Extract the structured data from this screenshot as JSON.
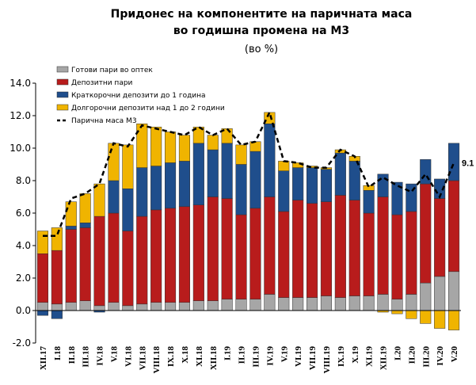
{
  "chart_data": {
    "type": "stacked_bar_line",
    "title": "Придонес на компонентите на паричната маса",
    "subtitle": "во годишна промена на М3",
    "unit_label": "(во %)",
    "categories": [
      "XII.17",
      "I.18",
      "II.18",
      "III.18",
      "IV.18",
      "V.18",
      "VI.18",
      "VII.18",
      "VIII.18",
      "IX.18",
      "X.18",
      "XI.18",
      "XII.18",
      "I.19",
      "II.19",
      "III.19",
      "IV.19",
      "V.19",
      "VI.19",
      "VII.19",
      "VIII.19",
      "IX.19",
      "X.19",
      "XI.19",
      "XII.19",
      "I.20",
      "II.20",
      "III.20",
      "IV.20",
      "V.20"
    ],
    "series": [
      {
        "name": "Готови пари во оптек",
        "color": "#a6a6a6",
        "kind": "bar",
        "values": [
          0.5,
          0.4,
          0.5,
          0.6,
          0.3,
          0.5,
          0.3,
          0.4,
          0.5,
          0.5,
          0.5,
          0.6,
          0.6,
          0.7,
          0.7,
          0.7,
          1.0,
          0.8,
          0.8,
          0.8,
          0.9,
          0.8,
          0.9,
          0.9,
          1.0,
          0.7,
          1.0,
          1.7,
          2.1,
          2.4
        ]
      },
      {
        "name": "Депозитни пари",
        "color": "#b81c1c",
        "kind": "bar",
        "values": [
          3.0,
          3.3,
          4.5,
          4.5,
          5.5,
          5.5,
          4.6,
          5.4,
          5.7,
          5.8,
          5.9,
          5.9,
          6.4,
          6.2,
          5.2,
          5.6,
          6.0,
          5.3,
          6.0,
          5.8,
          5.8,
          6.3,
          5.9,
          5.1,
          6.0,
          5.2,
          5.1,
          6.1,
          4.8,
          5.6
        ]
      },
      {
        "name": "Краткорочни депозити до 1 година",
        "color": "#1f4e8c",
        "kind": "bar",
        "values": [
          -0.3,
          -0.5,
          0.2,
          0.3,
          -0.1,
          2.0,
          2.6,
          3.0,
          2.7,
          2.8,
          2.8,
          3.8,
          2.9,
          3.4,
          3.1,
          3.5,
          4.5,
          2.5,
          2.0,
          2.2,
          2.0,
          2.6,
          2.4,
          1.4,
          1.4,
          2.0,
          1.7,
          1.5,
          1.2,
          2.3
        ]
      },
      {
        "name": "Долгорочни депозити над 1 до 2 години",
        "color": "#f0b400",
        "kind": "bar",
        "values": [
          1.4,
          1.4,
          1.5,
          1.8,
          2.0,
          2.3,
          2.7,
          2.7,
          2.4,
          1.9,
          1.6,
          1.0,
          0.9,
          0.9,
          1.2,
          0.6,
          0.7,
          0.6,
          0.3,
          0.1,
          0.1,
          0.2,
          0.3,
          0.3,
          -0.1,
          -0.2,
          -0.5,
          -0.8,
          -1.1,
          -1.2
        ]
      },
      {
        "name": "Парична маса М3",
        "color": "#000000",
        "kind": "line",
        "data_labels": "last",
        "values": [
          4.6,
          4.6,
          6.9,
          7.2,
          7.8,
          10.3,
          10.1,
          11.4,
          11.2,
          11.0,
          10.8,
          11.3,
          10.8,
          11.2,
          10.2,
          10.4,
          12.2,
          9.2,
          9.1,
          8.8,
          8.8,
          9.9,
          9.5,
          7.6,
          8.2,
          7.7,
          7.3,
          8.4,
          7.0,
          9.1
        ]
      }
    ],
    "ylim": [
      -2,
      14
    ],
    "yticks": [
      {
        "value": -2,
        "label": "-2.0"
      },
      {
        "value": 0,
        "label": "0.0"
      },
      {
        "value": 2,
        "label": "2.0"
      },
      {
        "value": 4,
        "label": "4.0"
      },
      {
        "value": 6,
        "label": "6.0"
      },
      {
        "value": 8,
        "label": "8.0"
      },
      {
        "value": 10,
        "label": "10.0"
      },
      {
        "value": 12,
        "label": "12.0"
      },
      {
        "value": 14,
        "label": "14.0"
      }
    ],
    "grid": false,
    "legend": "top-left"
  }
}
